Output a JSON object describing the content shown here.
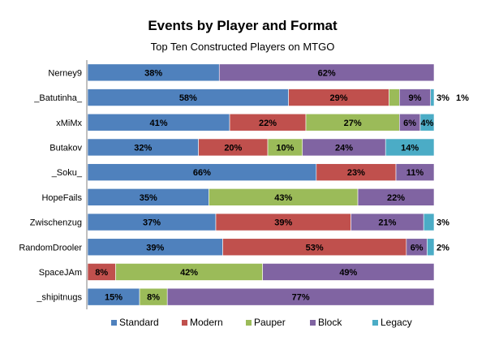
{
  "chart_data": {
    "type": "bar",
    "orientation": "horizontal",
    "stacked": "percent",
    "title": "Events by Player and Format",
    "subtitle": "Top Ten Constructed Players on MTGO",
    "categories": [
      "Nerney9",
      "_Batutinha_",
      "xMiMx",
      "Butakov",
      "_Soku_",
      "HopeFails",
      "Zwischenzug",
      "RandomDrooler",
      "SpaceJAm",
      "_shipitnugs"
    ],
    "series": [
      {
        "name": "Standard",
        "color": "#4F81BD",
        "values": [
          38,
          58,
          41,
          32,
          66,
          35,
          37,
          39,
          0,
          15
        ]
      },
      {
        "name": "Modern",
        "color": "#C0504D",
        "values": [
          0,
          29,
          22,
          20,
          23,
          0,
          39,
          53,
          8,
          0
        ]
      },
      {
        "name": "Pauper",
        "color": "#9BBB59",
        "values": [
          0,
          3,
          27,
          10,
          0,
          43,
          0,
          0,
          42,
          8
        ]
      },
      {
        "name": "Block",
        "color": "#8064A2",
        "values": [
          62,
          9,
          6,
          24,
          11,
          22,
          21,
          6,
          49,
          77
        ]
      },
      {
        "name": "Legacy",
        "color": "#4BACC6",
        "values": [
          0,
          1,
          4,
          14,
          0,
          0,
          3,
          2,
          0,
          0
        ]
      }
    ],
    "xlim": [
      0,
      100
    ],
    "grid": false,
    "legend_position": "bottom"
  }
}
